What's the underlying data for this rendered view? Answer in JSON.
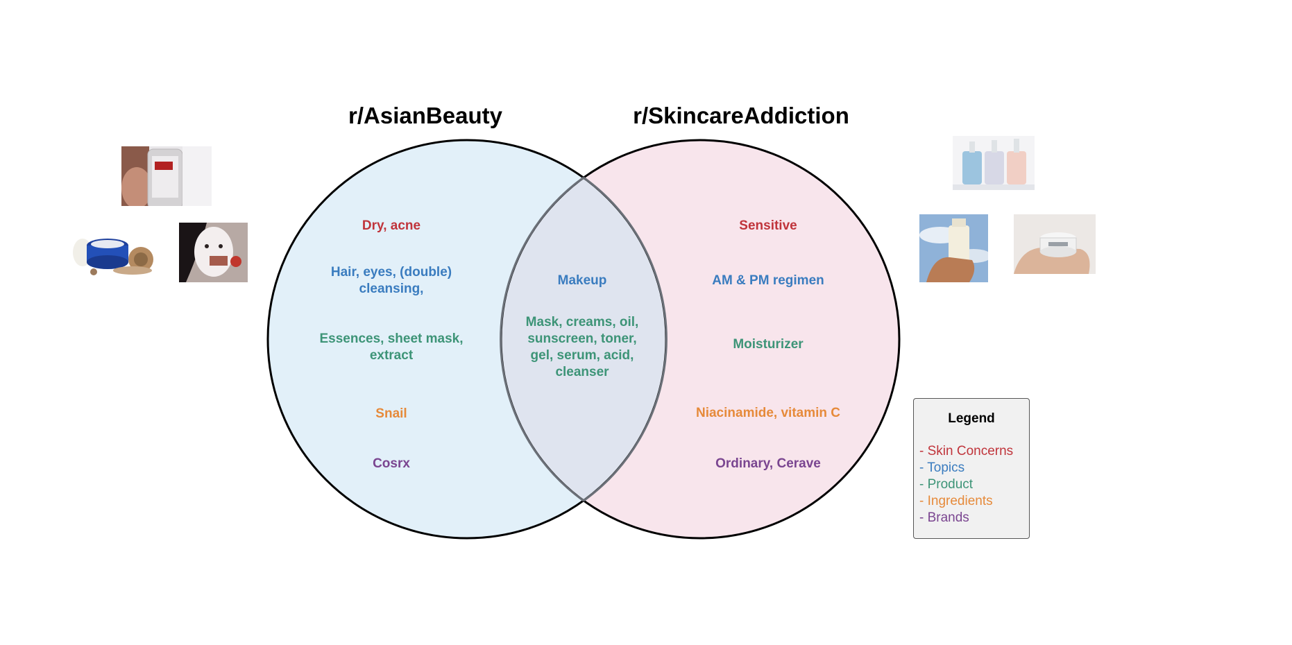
{
  "titles": {
    "left": "r/AsianBeauty",
    "right": "r/SkincareAddiction"
  },
  "colors": {
    "left_fill": "#e2f0f9",
    "right_fill": "#f8e5ec",
    "overlap_fill": "#dfe4ef",
    "skin_concerns": "#c0343b",
    "topics": "#3a7cbf",
    "product": "#3d9477",
    "ingredients": "#e68a3a",
    "brands": "#7a4590"
  },
  "left": {
    "skin_concerns": "Dry, acne",
    "topics": "Hair, eyes, (double)\ncleansing,",
    "product": "Essences, sheet mask,\nextract",
    "ingredients": "Snail",
    "brands": "Cosrx"
  },
  "overlap": {
    "topics": "Makeup",
    "product": "Mask, creams, oil,\nsunscreen, toner,\ngel, serum, acid,\ncleanser"
  },
  "right": {
    "skin_concerns": "Sensitive",
    "topics": "AM & PM regimen",
    "product": "Moisturizer",
    "ingredients": "Niacinamide, vitamin C",
    "brands": "Ordinary, Cerave"
  },
  "legend": {
    "title": "Legend",
    "items": [
      {
        "dash": "-",
        "label": "Skin Concerns",
        "color": "#c0343b"
      },
      {
        "dash": "-",
        "label": "Topics",
        "color": "#3a7cbf"
      },
      {
        "dash": "-",
        "label": "Product",
        "color": "#3d9477"
      },
      {
        "dash": "-",
        "label": "Ingredients",
        "color": "#e68a3a"
      },
      {
        "dash": "-",
        "label": "Brands",
        "color": "#7a4590"
      }
    ]
  },
  "images": {
    "left": [
      "essence-bottle-photo",
      "snail-cream-jar-photo",
      "sheet-mask-face-photo"
    ],
    "right": [
      "three-serum-bottles-photo",
      "hand-holding-bottle-photo",
      "hand-holding-jar-photo"
    ]
  }
}
